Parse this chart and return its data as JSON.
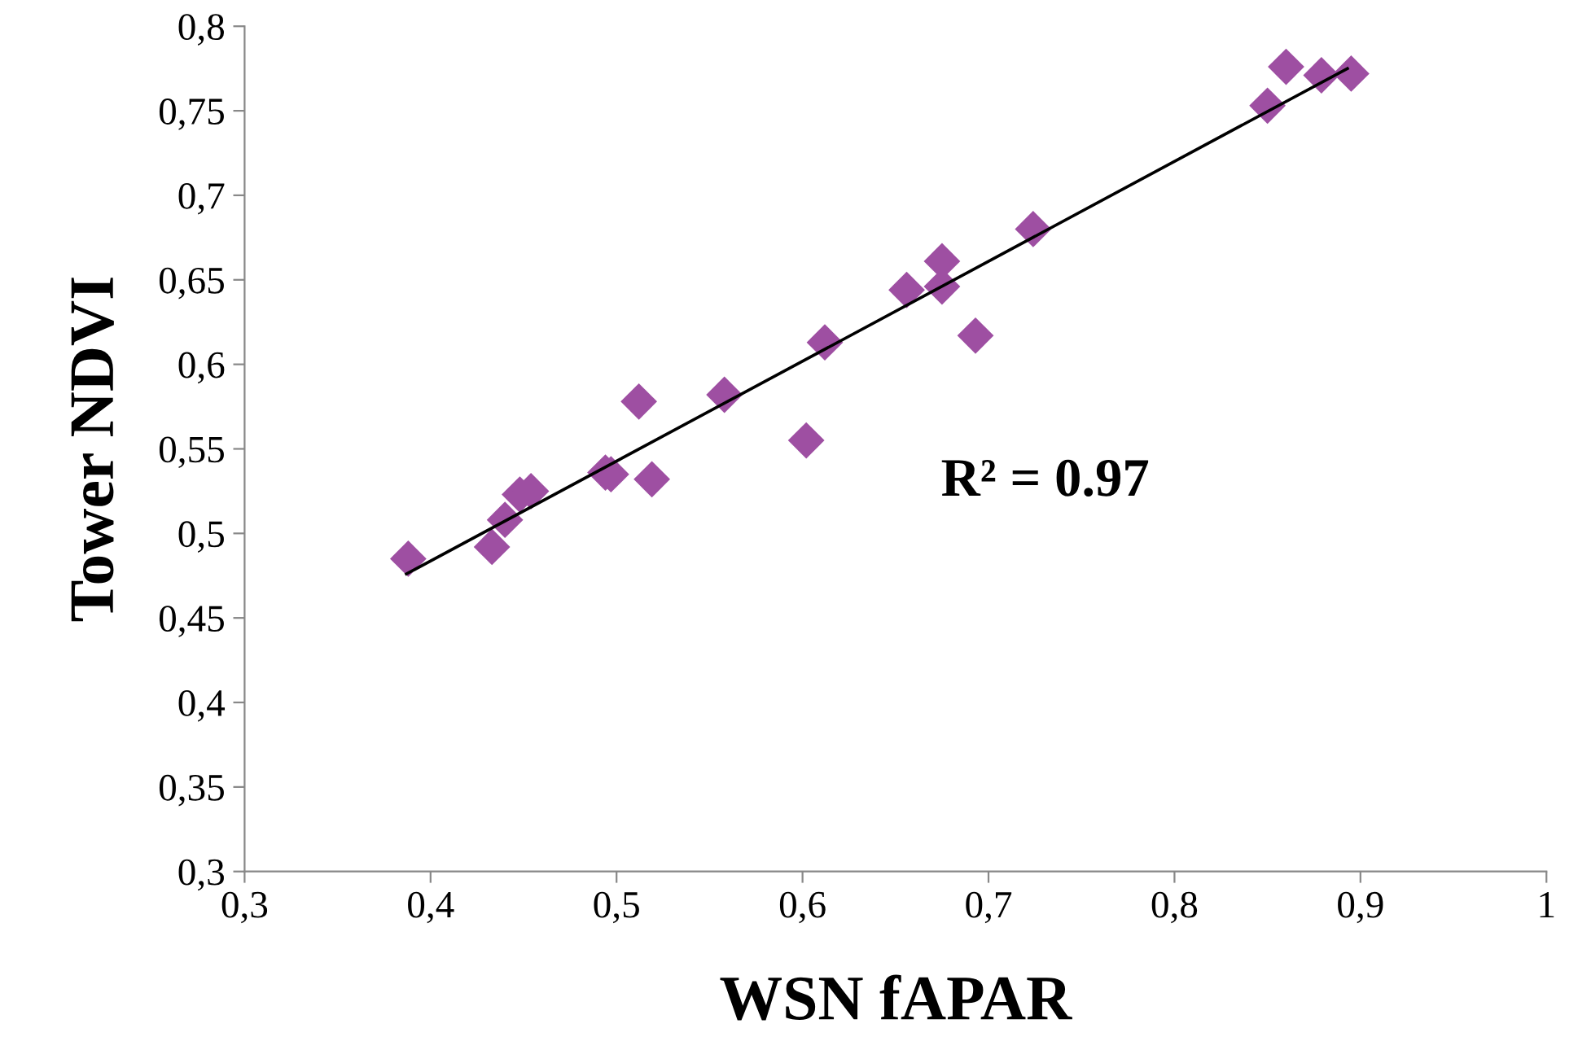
{
  "chart_data": {
    "type": "scatter",
    "xlabel": "WSN fAPAR",
    "ylabel": "Tower NDVI",
    "marker": "diamond",
    "grid": false,
    "legend": false,
    "xlim": [
      0.3,
      1.0
    ],
    "ylim": [
      0.3,
      0.8
    ],
    "xticks": [
      {
        "value": 0.3,
        "label": "0,3"
      },
      {
        "value": 0.4,
        "label": "0,4"
      },
      {
        "value": 0.5,
        "label": "0,5"
      },
      {
        "value": 0.6,
        "label": "0,6"
      },
      {
        "value": 0.7,
        "label": "0,7"
      },
      {
        "value": 0.8,
        "label": "0,8"
      },
      {
        "value": 0.9,
        "label": "0,9"
      },
      {
        "value": 1.0,
        "label": "1"
      }
    ],
    "yticks": [
      {
        "value": 0.3,
        "label": "0,3"
      },
      {
        "value": 0.35,
        "label": "0,35"
      },
      {
        "value": 0.4,
        "label": "0,4"
      },
      {
        "value": 0.45,
        "label": "0,45"
      },
      {
        "value": 0.5,
        "label": "0,5"
      },
      {
        "value": 0.55,
        "label": "0,55"
      },
      {
        "value": 0.6,
        "label": "0,6"
      },
      {
        "value": 0.65,
        "label": "0,65"
      },
      {
        "value": 0.7,
        "label": "0,7"
      },
      {
        "value": 0.75,
        "label": "0,75"
      },
      {
        "value": 0.8,
        "label": "0,8"
      }
    ],
    "annotations": [
      "R² = 0.97"
    ],
    "series": [
      {
        "color": "#9e4fa2",
        "x": [
          0.388,
          0.433,
          0.44,
          0.448,
          0.454,
          0.494,
          0.497,
          0.519,
          0.512,
          0.558,
          0.602,
          0.612,
          0.656,
          0.675,
          0.675,
          0.693,
          0.724,
          0.85,
          0.86,
          0.879,
          0.895
        ],
        "values": [
          0.485,
          0.492,
          0.508,
          0.523,
          0.525,
          0.536,
          0.535,
          0.532,
          0.578,
          0.582,
          0.555,
          0.613,
          0.644,
          0.661,
          0.646,
          0.617,
          0.68,
          0.753,
          0.776,
          0.771,
          0.772
        ]
      },
      {
        "type": "line",
        "color": "#000000",
        "marker": "none",
        "x": [
          0.387,
          0.893
        ],
        "values": [
          0.476,
          0.775
        ]
      }
    ]
  }
}
